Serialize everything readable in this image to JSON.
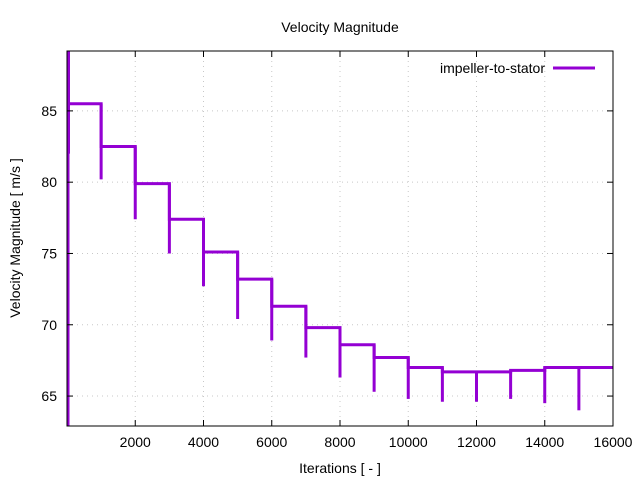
{
  "chart_data": {
    "type": "line",
    "title": "Velocity Magnitude",
    "xlabel": "Iterations [ - ]",
    "ylabel": "Velocity Magnitude [ m/s ]",
    "xlim": [
      0,
      16000
    ],
    "ylim": [
      62.9,
      89.2
    ],
    "xticks": [
      2000,
      4000,
      6000,
      8000,
      10000,
      12000,
      14000,
      16000
    ],
    "xtick_labels": [
      "2000",
      "4000",
      "6000",
      "8000",
      "10000",
      "12000",
      "14000",
      "16000"
    ],
    "yticks": [
      65,
      70,
      75,
      80,
      85
    ],
    "ytick_labels": [
      "65",
      "70",
      "75",
      "80",
      "85"
    ],
    "grid": true,
    "legend_position": "top-right",
    "series": [
      {
        "name": "impeller-to-stator",
        "color": "#9400D3",
        "initial_spike": {
          "x": 0,
          "y_max": 89.2,
          "y_min": 82.0
        },
        "steps": [
          {
            "x_start": 0,
            "x_end": 1000,
            "level": 85.5,
            "dip": null
          },
          {
            "x_start": 1000,
            "x_end": 2000,
            "level": 82.5,
            "dip": 80.2
          },
          {
            "x_start": 2000,
            "x_end": 3000,
            "level": 79.9,
            "dip": 77.4
          },
          {
            "x_start": 3000,
            "x_end": 4000,
            "level": 77.4,
            "dip": 75.0
          },
          {
            "x_start": 4000,
            "x_end": 5000,
            "level": 75.1,
            "dip": 72.7
          },
          {
            "x_start": 5000,
            "x_end": 6000,
            "level": 73.2,
            "dip": 70.4
          },
          {
            "x_start": 6000,
            "x_end": 7000,
            "level": 71.3,
            "dip": 68.9
          },
          {
            "x_start": 7000,
            "x_end": 8000,
            "level": 69.8,
            "dip": 67.7
          },
          {
            "x_start": 8000,
            "x_end": 9000,
            "level": 68.6,
            "dip": 66.3
          },
          {
            "x_start": 9000,
            "x_end": 10000,
            "level": 67.7,
            "dip": 65.3
          },
          {
            "x_start": 10000,
            "x_end": 11000,
            "level": 67.0,
            "dip": 64.8
          },
          {
            "x_start": 11000,
            "x_end": 12000,
            "level": 66.7,
            "dip": 64.6
          },
          {
            "x_start": 12000,
            "x_end": 13000,
            "level": 66.7,
            "dip": 64.6
          },
          {
            "x_start": 13000,
            "x_end": 14000,
            "level": 66.8,
            "dip": 64.8
          },
          {
            "x_start": 14000,
            "x_end": 15000,
            "level": 67.0,
            "dip": 64.5
          },
          {
            "x_start": 15000,
            "x_end": 16000,
            "level": 67.0,
            "dip": 64.0
          }
        ]
      }
    ]
  }
}
